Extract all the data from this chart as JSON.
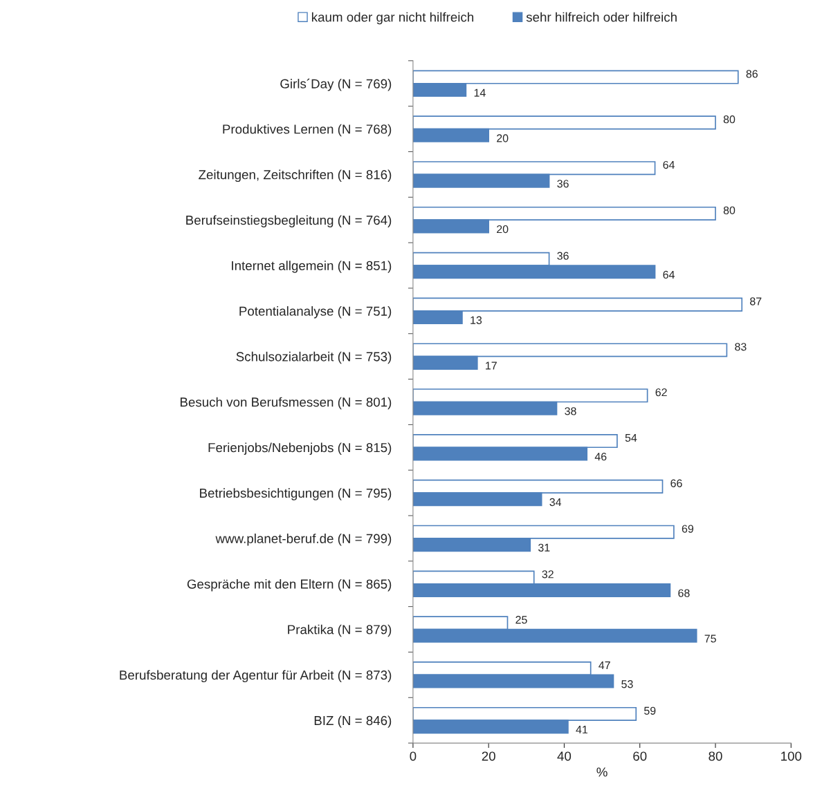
{
  "chart_data": {
    "type": "bar",
    "orientation": "horizontal",
    "xlabel": "%",
    "categories": [
      "Girls´Day (N = 769)",
      "Produktives Lernen (N = 768)",
      "Zeitungen, Zeitschriften (N = 816)",
      "Berufseinstiegsbegleitung (N = 764)",
      "Internet allgemein (N = 851)",
      "Potentialanalyse (N = 751)",
      "Schulsozialarbeit (N = 753)",
      "Besuch von Berufsmessen (N = 801)",
      "Ferienjobs/Nebenjobs (N = 815)",
      "Betriebsbesichtigungen (N = 795)",
      "www.planet-beruf.de (N = 799)",
      "Gespräche mit den Eltern (N = 865)",
      "Praktika (N = 879)",
      "Berufsberatung der Agentur für Arbeit (N = 873)",
      "BIZ (N = 846)"
    ],
    "series": [
      {
        "name": "kaum oder gar nicht hilfreich",
        "color": "#ffffff",
        "values": [
          86,
          80,
          64,
          80,
          36,
          87,
          83,
          62,
          54,
          66,
          69,
          32,
          25,
          47,
          59
        ]
      },
      {
        "name": "sehr hilfreich oder hilfreich",
        "color": "#4f81bd",
        "values": [
          14,
          20,
          36,
          20,
          64,
          13,
          17,
          38,
          46,
          34,
          31,
          68,
          75,
          53,
          41
        ]
      }
    ],
    "xlim": [
      0,
      100
    ],
    "xticks": [
      0,
      20,
      40,
      60,
      80,
      100
    ],
    "grid": false,
    "legend": "top",
    "data_labels": true
  }
}
